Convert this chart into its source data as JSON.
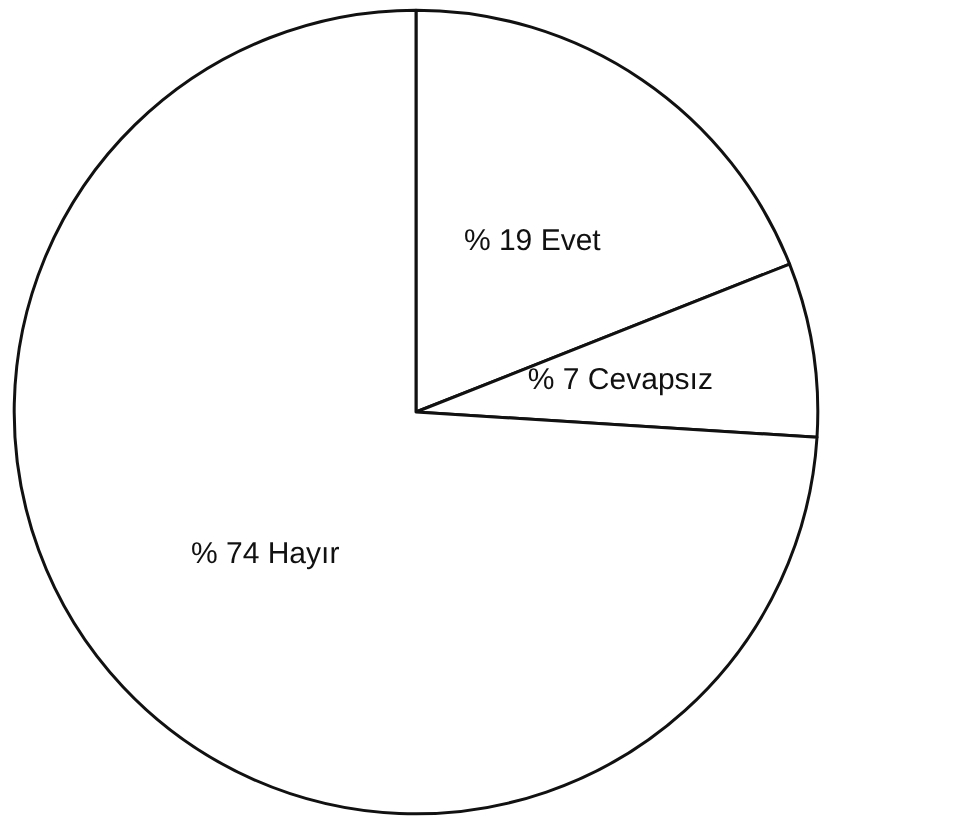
{
  "chart_data": {
    "type": "pie",
    "categories": [
      "Evet",
      "Cevapsız",
      "Hayır"
    ],
    "values": [
      19,
      7,
      74
    ],
    "colors": [
      "#ffffff",
      "#ffffff",
      "#ffffff"
    ],
    "value_labels": [
      "% 19",
      "% 7",
      "% 74"
    ],
    "legend": false
  }
}
